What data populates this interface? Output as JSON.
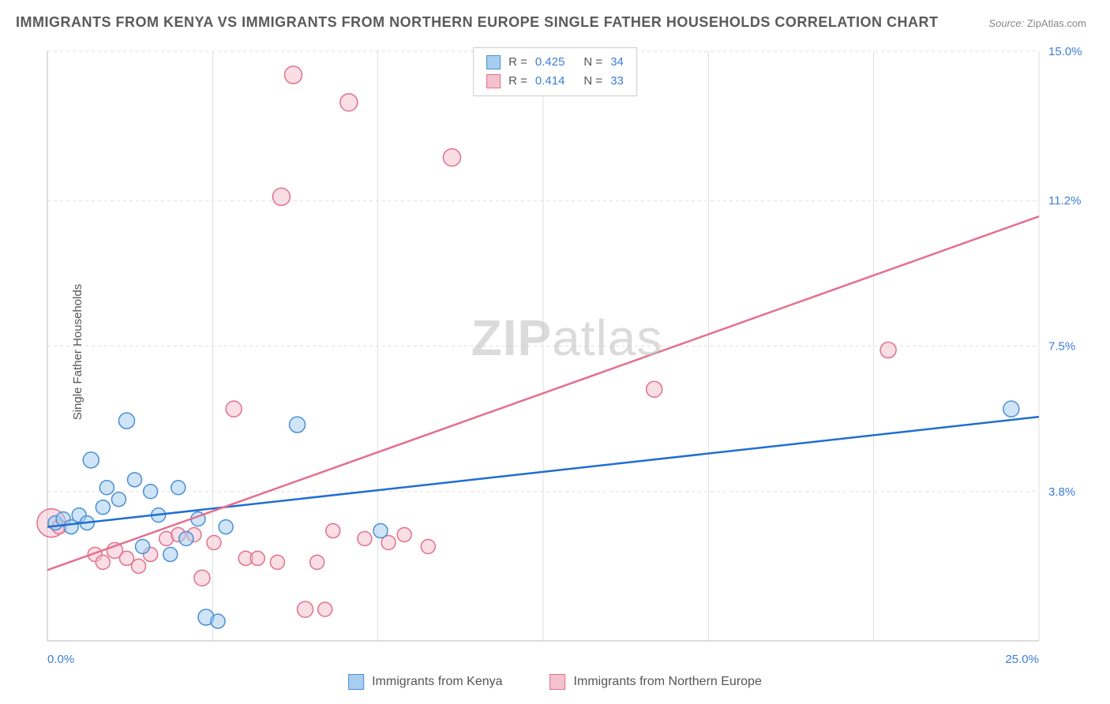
{
  "title": "IMMIGRANTS FROM KENYA VS IMMIGRANTS FROM NORTHERN EUROPE SINGLE FATHER HOUSEHOLDS CORRELATION CHART",
  "source_label": "Source:",
  "source_value": "ZipAtlas.com",
  "ylabel": "Single Father Households",
  "watermark_zip": "ZIP",
  "watermark_atlas": "atlas",
  "chart": {
    "type": "scatter",
    "background_color": "#ffffff",
    "grid_color": "#dddddd",
    "xlim": [
      0,
      25
    ],
    "ylim": [
      0,
      15
    ],
    "x_ticks": [
      0.0,
      25.0
    ],
    "x_tick_labels": [
      "0.0%",
      "25.0%"
    ],
    "y_ticks": [
      3.8,
      7.5,
      11.2,
      15.0
    ],
    "y_tick_labels": [
      "3.8%",
      "7.5%",
      "11.2%",
      "15.0%"
    ],
    "y_tick_color": "#3b7dd8",
    "x_tick_color": "#3b7dd8",
    "minor_x_grid": [
      0,
      4.17,
      8.33,
      12.5,
      16.67,
      20.83,
      25
    ],
    "axis_label_fontsize": 15,
    "marker_radius": 9,
    "marker_opacity": 0.55,
    "trend_line_width": 2.5
  },
  "series": [
    {
      "name": "Immigrants from Kenya",
      "color_fill": "#a8cdee",
      "color_stroke": "#4a8fd6",
      "trend_color": "#1f6fd0",
      "R": "0.425",
      "N": "34",
      "trend": {
        "x1": 0,
        "y1": 2.9,
        "x2": 25,
        "y2": 5.7
      },
      "points": [
        {
          "x": 0.2,
          "y": 3.0,
          "r": 9
        },
        {
          "x": 0.4,
          "y": 3.1,
          "r": 9
        },
        {
          "x": 0.6,
          "y": 2.9,
          "r": 9
        },
        {
          "x": 0.8,
          "y": 3.2,
          "r": 9
        },
        {
          "x": 1.0,
          "y": 3.0,
          "r": 9
        },
        {
          "x": 1.1,
          "y": 4.6,
          "r": 10
        },
        {
          "x": 1.4,
          "y": 3.4,
          "r": 9
        },
        {
          "x": 1.5,
          "y": 3.9,
          "r": 9
        },
        {
          "x": 1.8,
          "y": 3.6,
          "r": 9
        },
        {
          "x": 2.0,
          "y": 5.6,
          "r": 10
        },
        {
          "x": 2.2,
          "y": 4.1,
          "r": 9
        },
        {
          "x": 2.4,
          "y": 2.4,
          "r": 9
        },
        {
          "x": 2.6,
          "y": 3.8,
          "r": 9
        },
        {
          "x": 2.8,
          "y": 3.2,
          "r": 9
        },
        {
          "x": 3.1,
          "y": 2.2,
          "r": 9
        },
        {
          "x": 3.3,
          "y": 3.9,
          "r": 9
        },
        {
          "x": 3.5,
          "y": 2.6,
          "r": 9
        },
        {
          "x": 3.8,
          "y": 3.1,
          "r": 9
        },
        {
          "x": 4.0,
          "y": 0.6,
          "r": 10
        },
        {
          "x": 4.3,
          "y": 0.5,
          "r": 9
        },
        {
          "x": 4.5,
          "y": 2.9,
          "r": 9
        },
        {
          "x": 6.3,
          "y": 5.5,
          "r": 10
        },
        {
          "x": 8.4,
          "y": 2.8,
          "r": 9
        },
        {
          "x": 24.3,
          "y": 5.9,
          "r": 10
        }
      ]
    },
    {
      "name": "Immigrants from Northern Europe",
      "color_fill": "#f4c2cf",
      "color_stroke": "#e2708d",
      "trend_color": "#e2708d",
      "R": "0.414",
      "N": "33",
      "trend": {
        "x1": 0,
        "y1": 1.8,
        "x2": 25,
        "y2": 10.8
      },
      "points": [
        {
          "x": 0.1,
          "y": 3.0,
          "r": 18
        },
        {
          "x": 0.3,
          "y": 2.9,
          "r": 9
        },
        {
          "x": 1.2,
          "y": 2.2,
          "r": 9
        },
        {
          "x": 1.4,
          "y": 2.0,
          "r": 9
        },
        {
          "x": 1.7,
          "y": 2.3,
          "r": 10
        },
        {
          "x": 2.0,
          "y": 2.1,
          "r": 9
        },
        {
          "x": 2.3,
          "y": 1.9,
          "r": 9
        },
        {
          "x": 2.6,
          "y": 2.2,
          "r": 9
        },
        {
          "x": 3.0,
          "y": 2.6,
          "r": 9
        },
        {
          "x": 3.3,
          "y": 2.7,
          "r": 9
        },
        {
          "x": 3.7,
          "y": 2.7,
          "r": 9
        },
        {
          "x": 3.9,
          "y": 1.6,
          "r": 10
        },
        {
          "x": 4.2,
          "y": 2.5,
          "r": 9
        },
        {
          "x": 4.7,
          "y": 5.9,
          "r": 10
        },
        {
          "x": 5.0,
          "y": 2.1,
          "r": 9
        },
        {
          "x": 5.3,
          "y": 2.1,
          "r": 9
        },
        {
          "x": 5.8,
          "y": 2.0,
          "r": 9
        },
        {
          "x": 5.9,
          "y": 11.3,
          "r": 11
        },
        {
          "x": 6.2,
          "y": 14.4,
          "r": 11
        },
        {
          "x": 6.5,
          "y": 0.8,
          "r": 10
        },
        {
          "x": 6.8,
          "y": 2.0,
          "r": 9
        },
        {
          "x": 7.0,
          "y": 0.8,
          "r": 9
        },
        {
          "x": 7.2,
          "y": 2.8,
          "r": 9
        },
        {
          "x": 7.6,
          "y": 13.7,
          "r": 11
        },
        {
          "x": 8.0,
          "y": 2.6,
          "r": 9
        },
        {
          "x": 8.6,
          "y": 2.5,
          "r": 9
        },
        {
          "x": 9.0,
          "y": 2.7,
          "r": 9
        },
        {
          "x": 9.6,
          "y": 2.4,
          "r": 9
        },
        {
          "x": 10.2,
          "y": 12.3,
          "r": 11
        },
        {
          "x": 15.3,
          "y": 6.4,
          "r": 10
        },
        {
          "x": 21.2,
          "y": 7.4,
          "r": 10
        }
      ]
    }
  ],
  "r_legend": {
    "r_prefix": "R =",
    "n_prefix": "N ="
  }
}
